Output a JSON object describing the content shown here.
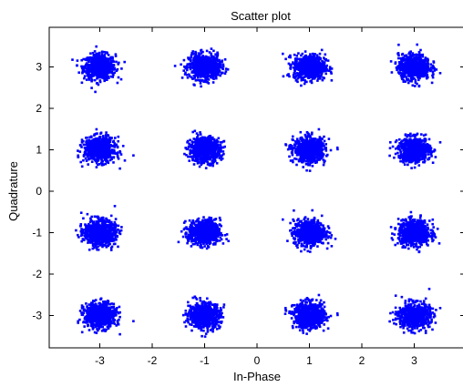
{
  "chart_data": {
    "type": "scatter",
    "title": "Scatter plot",
    "xlabel": "In-Phase",
    "ylabel": "Quadrature",
    "xlim": [
      -3.85,
      3.85
    ],
    "ylim": [
      -3.85,
      3.85
    ],
    "x_ticks": [
      -3,
      -2,
      -1,
      0,
      1,
      2,
      3
    ],
    "y_ticks": [
      3,
      2,
      1,
      0,
      -1,
      -2,
      -3
    ],
    "x_tick_labels": [
      "-3",
      "-2",
      "-1",
      "0",
      "1",
      "2",
      "3"
    ],
    "y_tick_labels": [
      "3",
      "2",
      "1",
      "0",
      "-1",
      "-2",
      "-3"
    ],
    "grid": false,
    "legend": "none",
    "marker_color": "#0000ff",
    "clusters": [
      {
        "x": -3,
        "y": 3
      },
      {
        "x": -1,
        "y": 3
      },
      {
        "x": 1,
        "y": 3
      },
      {
        "x": 3,
        "y": 3
      },
      {
        "x": -3,
        "y": 1
      },
      {
        "x": -1,
        "y": 1
      },
      {
        "x": 1,
        "y": 1
      },
      {
        "x": 3,
        "y": 1
      },
      {
        "x": -3,
        "y": -1
      },
      {
        "x": -1,
        "y": -1
      },
      {
        "x": 1,
        "y": -1
      },
      {
        "x": 3,
        "y": -1
      },
      {
        "x": -3,
        "y": -3
      },
      {
        "x": -1,
        "y": -3
      },
      {
        "x": 1,
        "y": -3
      },
      {
        "x": 3,
        "y": -3
      }
    ],
    "cluster_spread_sd": 0.15
  }
}
